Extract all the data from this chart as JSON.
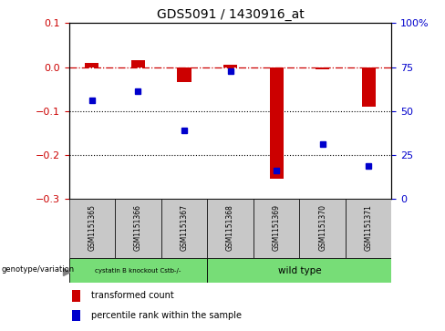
{
  "title": "GDS5091 / 1430916_at",
  "samples": [
    "GSM1151365",
    "GSM1151366",
    "GSM1151367",
    "GSM1151368",
    "GSM1151369",
    "GSM1151370",
    "GSM1151371"
  ],
  "red_values": [
    0.01,
    0.015,
    -0.035,
    0.005,
    -0.255,
    -0.005,
    -0.09
  ],
  "blue_values": [
    -0.075,
    -0.055,
    -0.145,
    -0.01,
    -0.235,
    -0.175,
    -0.225
  ],
  "ylim_left": [
    -0.3,
    0.1
  ],
  "ylim_right": [
    0,
    100
  ],
  "right_ticks": [
    0,
    25,
    50,
    75,
    100
  ],
  "right_tick_labels": [
    "0",
    "25",
    "50",
    "75",
    "100%"
  ],
  "left_ticks": [
    -0.3,
    -0.2,
    -0.1,
    0.0,
    0.1
  ],
  "hline_y": 0,
  "dotted_lines": [
    -0.1,
    -0.2
  ],
  "red_color": "#cc0000",
  "blue_color": "#0000cc",
  "bar_width": 0.3,
  "marker_size": 5,
  "legend_red": "transformed count",
  "legend_blue": "percentile rank within the sample",
  "xlabel_genotype": "genotype/variation",
  "background_color": "#ffffff",
  "tick_label_color_left": "#cc0000",
  "tick_label_color_right": "#0000cc",
  "group1_label": "cystatin B knockout Cstb-/-",
  "group2_label": "wild type",
  "group_color": "#77dd77",
  "sample_box_color": "#c8c8c8"
}
